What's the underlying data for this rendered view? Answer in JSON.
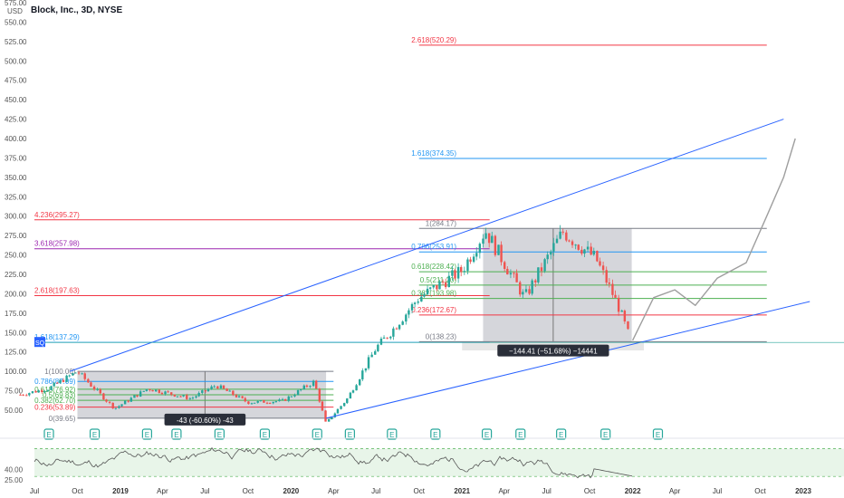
{
  "header": {
    "symbol": "Block, Inc., 3D, NYSE",
    "currency": "USD"
  },
  "colors": {
    "up": "#26a69a",
    "down": "#ef5350",
    "channel": "#2962ff",
    "fib_red": "#f23645",
    "fib_blue": "#2196f3",
    "fib_green": "#4caf50",
    "fib_purple": "#9c27b0",
    "box": "#b2b5be",
    "projection": "#9e9e9e",
    "rsi": "#555555"
  },
  "chart_data": {
    "type": "candlestick",
    "title": "Block, Inc., 3D, NYSE",
    "ylim": [
      25,
      575
    ],
    "yticks": [
      "575.00",
      "550.00",
      "525.00",
      "500.00",
      "475.00",
      "450.00",
      "425.00",
      "400.00",
      "375.00",
      "350.00",
      "325.00",
      "300.00",
      "275.00",
      "250.00",
      "225.00",
      "200.00",
      "175.00",
      "150.00",
      "125.00",
      "100.00",
      "75.00",
      "50.00"
    ],
    "xticks": [
      "Jul",
      "Oct",
      "2019",
      "Apr",
      "Jul",
      "Oct",
      "2020",
      "Apr",
      "Jul",
      "Oct",
      "2021",
      "Apr",
      "Jul",
      "Oct",
      "2022",
      "Apr",
      "Jul",
      "Oct",
      "2023"
    ],
    "price_path": [
      {
        "date": "2018-06-01",
        "price": 70
      },
      {
        "date": "2018-08-01",
        "price": 78
      },
      {
        "date": "2018-10-01",
        "price": 100
      },
      {
        "date": "2018-12-20",
        "price": 52
      },
      {
        "date": "2019-03-01",
        "price": 78
      },
      {
        "date": "2019-06-01",
        "price": 65
      },
      {
        "date": "2019-07-25",
        "price": 82
      },
      {
        "date": "2019-10-01",
        "price": 60
      },
      {
        "date": "2019-12-15",
        "price": 62
      },
      {
        "date": "2020-02-20",
        "price": 87
      },
      {
        "date": "2020-03-16",
        "price": 33
      },
      {
        "date": "2020-05-01",
        "price": 65
      },
      {
        "date": "2020-07-01",
        "price": 130
      },
      {
        "date": "2020-08-01",
        "price": 150
      },
      {
        "date": "2020-10-01",
        "price": 195
      },
      {
        "date": "2021-01-01",
        "price": 230
      },
      {
        "date": "2021-02-20",
        "price": 282
      },
      {
        "date": "2021-05-15",
        "price": 195
      },
      {
        "date": "2021-08-05",
        "price": 280
      },
      {
        "date": "2021-10-15",
        "price": 245
      },
      {
        "date": "2021-12-01",
        "price": 185
      },
      {
        "date": "2021-12-28",
        "price": 140
      }
    ],
    "fib_2018": [
      {
        "label": "1(100.00)",
        "value": 100
      },
      {
        "label": "0.786(87.09)",
        "value": 87.09
      },
      {
        "label": "0.618(76.92)",
        "value": 76.92
      },
      {
        "label": "0.5(69.83)",
        "value": 69.83
      },
      {
        "label": "0.382(62.70)",
        "value": 62.7
      },
      {
        "label": "0.236(53.89)",
        "value": 53.89
      },
      {
        "label": "0(39.65)",
        "value": 39.65
      }
    ],
    "fib_extensions": [
      {
        "label": "4.236(295.27)",
        "value": 295.27
      },
      {
        "label": "3.618(257.98)",
        "value": 257.98
      },
      {
        "label": "2.618(197.63)",
        "value": 197.63
      },
      {
        "label": "1.618(137.29)",
        "value": 137.29
      }
    ],
    "fib_2021": [
      {
        "label": "1(284.17)",
        "value": 284.17
      },
      {
        "label": "0.786(253.91)",
        "value": 253.91
      },
      {
        "label": "0.618(228.42)",
        "value": 228.42
      },
      {
        "label": "0.5(211.20)",
        "value": 211.2
      },
      {
        "label": "0.382(193.98)",
        "value": 193.98
      },
      {
        "label": "0.236(172.67)",
        "value": 172.67
      },
      {
        "label": "0(138.23)",
        "value": 138.23
      }
    ],
    "fib_2021_ext": [
      {
        "label": "2.618(520.29)",
        "value": 520.29
      },
      {
        "label": "1.618(374.35)",
        "value": 374.35
      }
    ],
    "measure_2018": "-43 (-60.60%) -43",
    "measure_2021": "−144.41 (−51.68%) −14441",
    "symbol_tag": "SQ",
    "rsi": {
      "ylim": [
        25,
        80
      ],
      "ticks": [
        "25.00",
        "40.00"
      ]
    },
    "earnings_markers": [
      {
        "date": "2018-08-01",
        "kind": "E"
      },
      {
        "date": "2018-11-07",
        "kind": "E"
      },
      {
        "date": "2019-02-27",
        "kind": "E"
      },
      {
        "date": "2019-05-01",
        "kind": "E"
      },
      {
        "date": "2019-08-01",
        "kind": "E"
      },
      {
        "date": "2019-11-06",
        "kind": "E"
      },
      {
        "date": "2020-02-26",
        "kind": "E"
      },
      {
        "date": "2020-05-06",
        "kind": "E"
      },
      {
        "date": "2020-08-04",
        "kind": "E"
      },
      {
        "date": "2020-11-05",
        "kind": "E"
      },
      {
        "date": "2021-02-23",
        "kind": "E"
      },
      {
        "date": "2021-05-06",
        "kind": "E"
      },
      {
        "date": "2021-08-01",
        "kind": "E"
      },
      {
        "date": "2021-11-04",
        "kind": "E"
      },
      {
        "date": "2022-02-24",
        "kind": "E"
      }
    ]
  }
}
